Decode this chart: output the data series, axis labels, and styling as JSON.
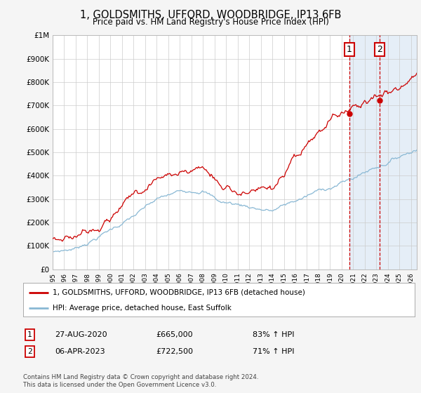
{
  "title": "1, GOLDSMITHS, UFFORD, WOODBRIDGE, IP13 6FB",
  "subtitle": "Price paid vs. HM Land Registry's House Price Index (HPI)",
  "ylabel_ticks": [
    "£0",
    "£100K",
    "£200K",
    "£300K",
    "£400K",
    "£500K",
    "£600K",
    "£700K",
    "£800K",
    "£900K",
    "£1M"
  ],
  "ytick_values": [
    0,
    100000,
    200000,
    300000,
    400000,
    500000,
    600000,
    700000,
    800000,
    900000,
    1000000
  ],
  "ylim": [
    0,
    1000000
  ],
  "xlim_start": 1995.0,
  "xlim_end": 2026.5,
  "red_line_color": "#cc0000",
  "blue_line_color": "#89b8d4",
  "sale1_date": 2020.65,
  "sale1_price": 665000,
  "sale2_date": 2023.27,
  "sale2_price": 722500,
  "vline_color": "#cc0000",
  "marker_color": "#cc0000",
  "legend_label_red": "1, GOLDSMITHS, UFFORD, WOODBRIDGE, IP13 6FB (detached house)",
  "legend_label_blue": "HPI: Average price, detached house, East Suffolk",
  "table_row1": [
    "1",
    "27-AUG-2020",
    "£665,000",
    "83% ↑ HPI"
  ],
  "table_row2": [
    "2",
    "06-APR-2023",
    "£722,500",
    "71% ↑ HPI"
  ],
  "footnote1": "Contains HM Land Registry data © Crown copyright and database right 2024.",
  "footnote2": "This data is licensed under the Open Government Licence v3.0.",
  "background_color": "#f5f5f5",
  "plot_bg_color": "#ffffff",
  "grid_color": "#cccccc",
  "shade_color": "#ccdff0"
}
